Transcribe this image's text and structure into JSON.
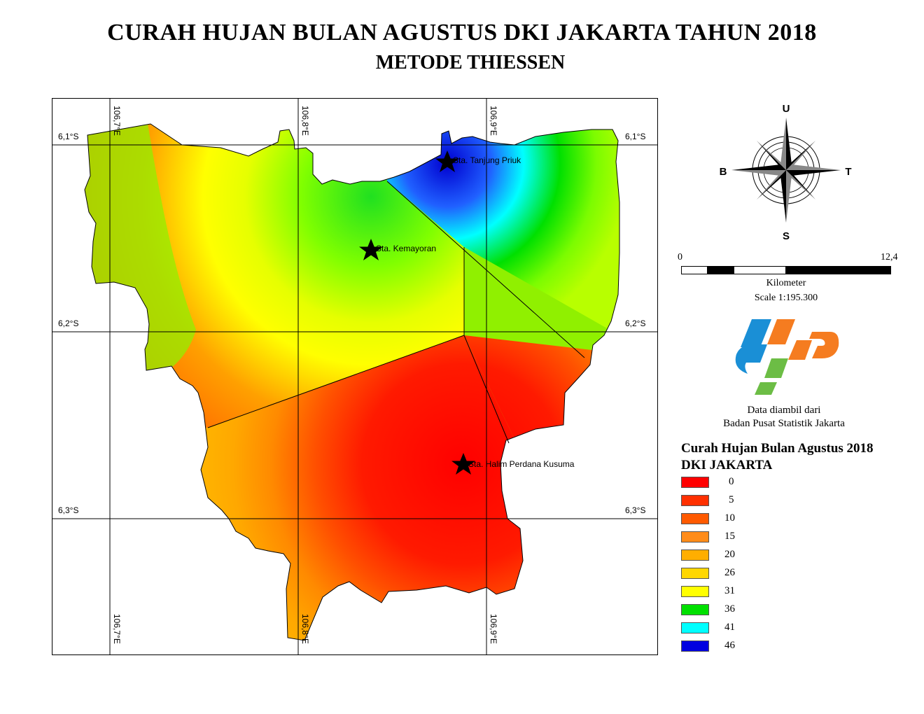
{
  "title": "CURAH HUJAN BULAN AGUSTUS DKI JAKARTA TAHUN 2018",
  "subtitle": "METODE THIESSEN",
  "grid": {
    "lon_labels": [
      "106,7°E",
      "106,8°E",
      "106,9°E"
    ],
    "lat_labels": [
      "6,1°S",
      "6,2°S",
      "6,3°S"
    ]
  },
  "stations": [
    {
      "name": "Sta. Tanjung Priuk"
    },
    {
      "name": "Sta. Kemayoran"
    },
    {
      "name": "Sta. Halim Perdana Kusuma"
    }
  ],
  "compass": {
    "north": "U",
    "south": "S",
    "east": "T",
    "west": "B"
  },
  "scale": {
    "start": "0",
    "end": "12,4",
    "unit": "Kilometer",
    "ratio": "Scale 1:195.300"
  },
  "credit": {
    "line1": "Data diambil dari",
    "line2": "Badan Pusat Statistik Jakarta"
  },
  "legend": {
    "title_line1": "Curah Hujan Bulan Agustus 2018",
    "title_line2": "DKI JAKARTA",
    "items": [
      {
        "value": "0",
        "color": "#ff0000"
      },
      {
        "value": "5",
        "color": "#ff3000"
      },
      {
        "value": "10",
        "color": "#ff5a00"
      },
      {
        "value": "15",
        "color": "#ff8c1a"
      },
      {
        "value": "20",
        "color": "#ffae00"
      },
      {
        "value": "26",
        "color": "#ffd700"
      },
      {
        "value": "31",
        "color": "#ffff00"
      },
      {
        "value": "36",
        "color": "#00e000"
      },
      {
        "value": "41",
        "color": "#00ffff"
      },
      {
        "value": "46",
        "color": "#0000e0"
      }
    ]
  }
}
